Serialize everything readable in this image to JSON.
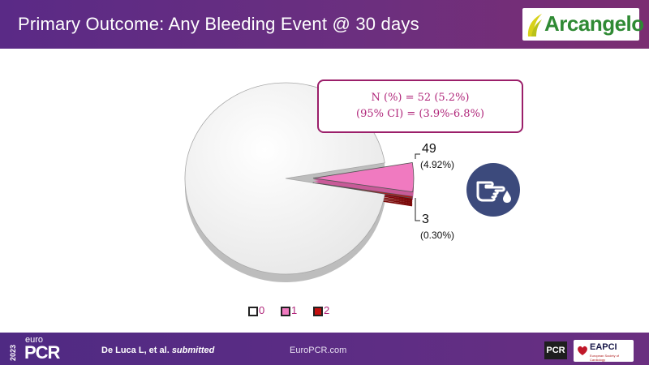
{
  "header": {
    "title": "Primary Outcome: Any Bleeding Event @ 30 days",
    "logo_text": "Arcangelo"
  },
  "callout": {
    "line1": "N (%) = 52 (5.2%)",
    "line2": "(95% CI) = (3.9%-6.8%)"
  },
  "chart_data": {
    "type": "pie",
    "categories": [
      "0",
      "1",
      "2"
    ],
    "values": [
      948,
      49,
      3
    ],
    "percent_labels": [
      "",
      "(4.92%)",
      "(0.30%)"
    ],
    "count_labels": [
      "",
      "49",
      "3"
    ],
    "colors": [
      "#efefef",
      "#f07ac0",
      "#c41010"
    ],
    "legend": {
      "placement": "bottom",
      "items": [
        {
          "label": "0",
          "color": "#ffffff"
        },
        {
          "label": "1",
          "color": "#f07ac0"
        },
        {
          "label": "2",
          "color": "#c41010"
        }
      ]
    }
  },
  "icon": {
    "name": "bleeding-hand-icon"
  },
  "footer": {
    "year": "2023",
    "brand_prefix": "euro",
    "brand": "PCR",
    "citation_authors": "De Luca L, et al.",
    "citation_status": "submitted",
    "website": "EuroPCR.com",
    "badge_pcr": "PCR",
    "badge_eapci": "EAPCI",
    "badge_eapci_sub": "European Society of Cardiology"
  }
}
